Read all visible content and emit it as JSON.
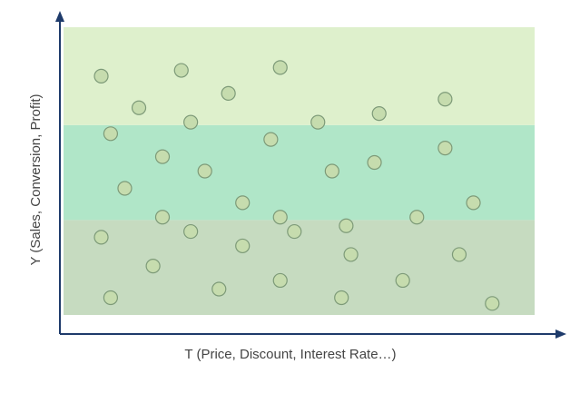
{
  "chart_data": {
    "type": "scatter",
    "xlabel": "T (Price, Discount, Interest Rate…)",
    "ylabel": "Y (Sales, Conversion, Profit)",
    "xlim": [
      0,
      100
    ],
    "ylim": [
      0,
      100
    ],
    "grid": false,
    "bands": [
      {
        "y_from": 0,
        "y_to": 33,
        "color": "#c6dbc0"
      },
      {
        "y_from": 33,
        "y_to": 66,
        "color": "#b0e6c8"
      },
      {
        "y_from": 66,
        "y_to": 100,
        "color": "#def0cc"
      }
    ],
    "point_color": "#c6dcae",
    "point_stroke": "#7d9a78",
    "points": [
      {
        "x": 8,
        "y": 83
      },
      {
        "x": 25,
        "y": 85
      },
      {
        "x": 46,
        "y": 86
      },
      {
        "x": 35,
        "y": 77
      },
      {
        "x": 16,
        "y": 72
      },
      {
        "x": 27,
        "y": 67
      },
      {
        "x": 54,
        "y": 67
      },
      {
        "x": 67,
        "y": 70
      },
      {
        "x": 81,
        "y": 75
      },
      {
        "x": 10,
        "y": 63
      },
      {
        "x": 44,
        "y": 61
      },
      {
        "x": 21,
        "y": 55
      },
      {
        "x": 81,
        "y": 58
      },
      {
        "x": 30,
        "y": 50
      },
      {
        "x": 57,
        "y": 50
      },
      {
        "x": 66,
        "y": 53
      },
      {
        "x": 13,
        "y": 44
      },
      {
        "x": 38,
        "y": 39
      },
      {
        "x": 87,
        "y": 39
      },
      {
        "x": 21,
        "y": 34
      },
      {
        "x": 46,
        "y": 34
      },
      {
        "x": 60,
        "y": 31
      },
      {
        "x": 75,
        "y": 34
      },
      {
        "x": 8,
        "y": 27
      },
      {
        "x": 27,
        "y": 29
      },
      {
        "x": 49,
        "y": 29
      },
      {
        "x": 38,
        "y": 24
      },
      {
        "x": 61,
        "y": 21
      },
      {
        "x": 84,
        "y": 21
      },
      {
        "x": 19,
        "y": 17
      },
      {
        "x": 46,
        "y": 12
      },
      {
        "x": 72,
        "y": 12
      },
      {
        "x": 33,
        "y": 9
      },
      {
        "x": 10,
        "y": 6
      },
      {
        "x": 59,
        "y": 6
      },
      {
        "x": 91,
        "y": 4
      }
    ]
  }
}
